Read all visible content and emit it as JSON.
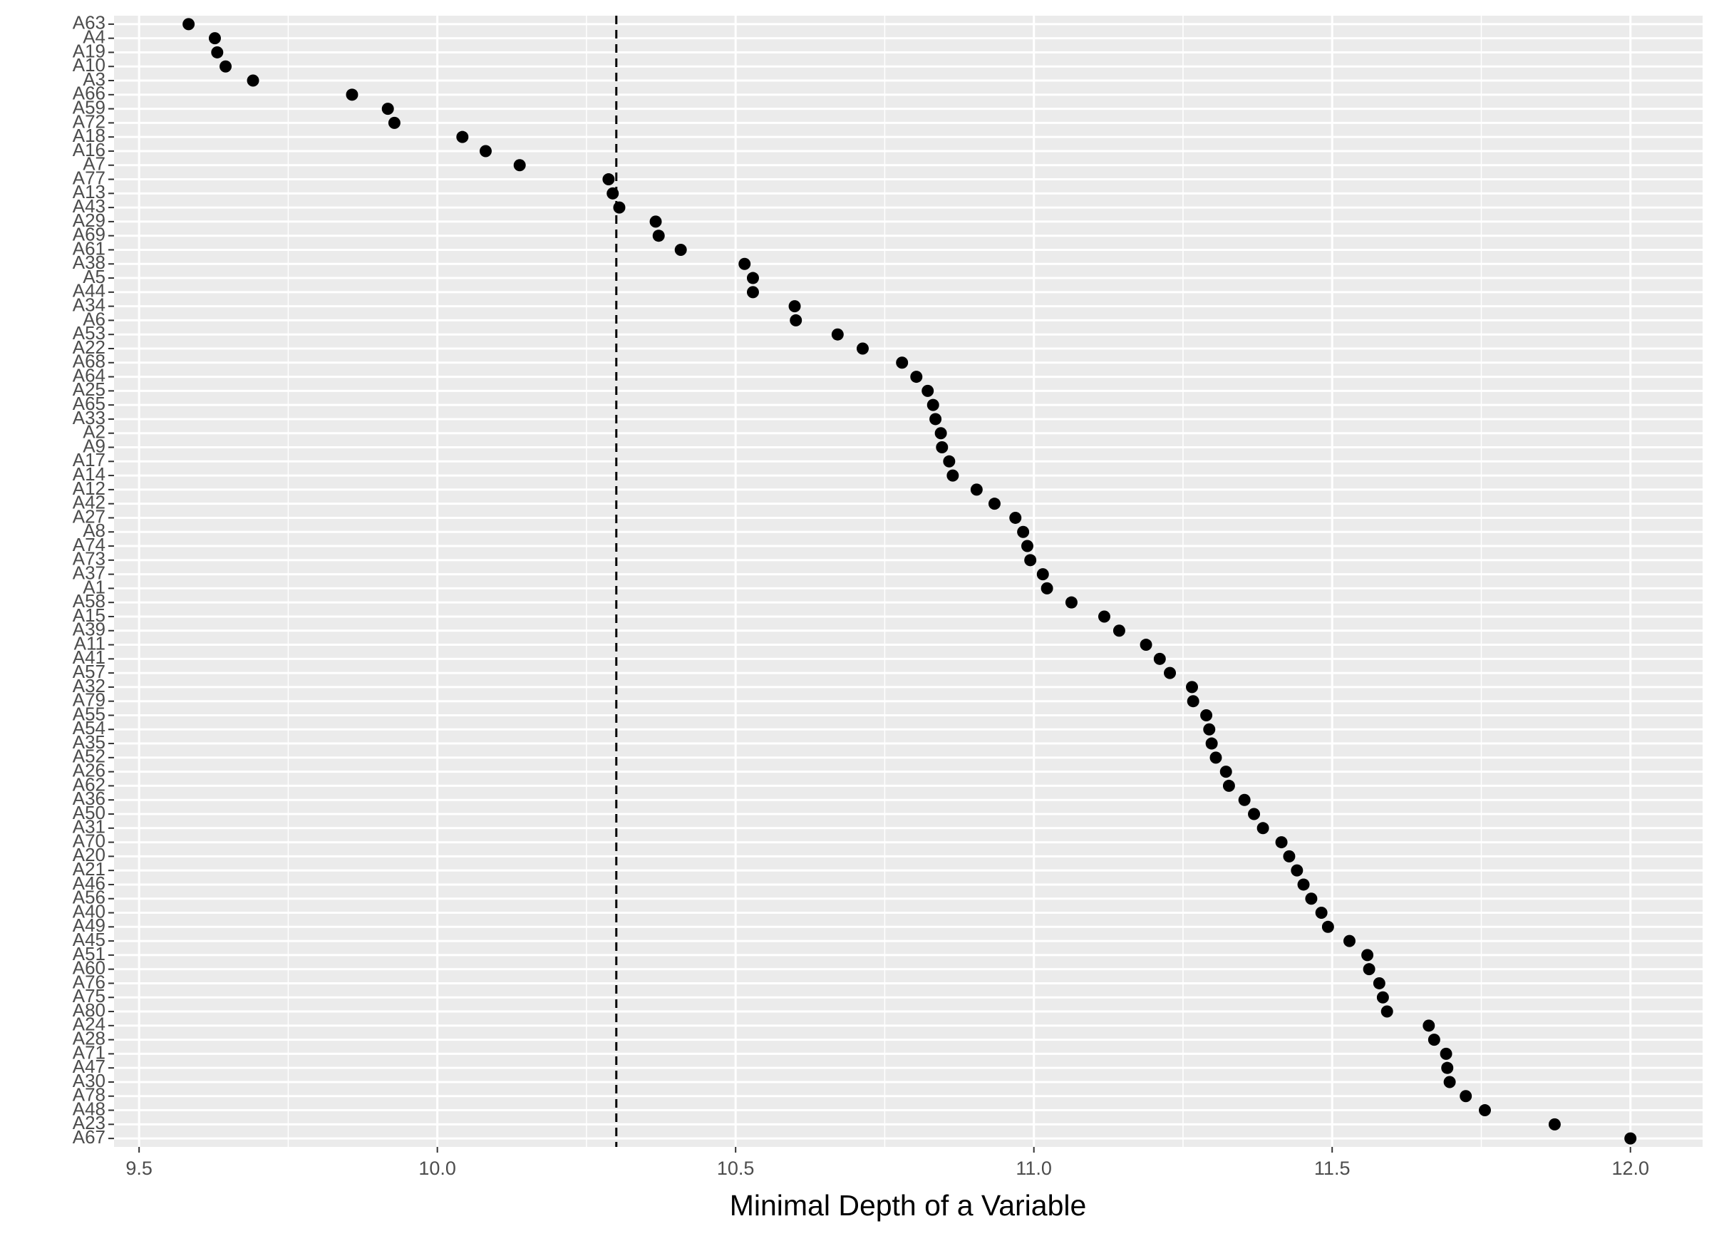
{
  "chart_data": {
    "type": "dot",
    "x_label": "Minimal Depth of a Variable",
    "categories": [
      "A63",
      "A4",
      "A19",
      "A10",
      "A3",
      "A66",
      "A59",
      "A72",
      "A18",
      "A16",
      "A7",
      "A77",
      "A13",
      "A43",
      "A29",
      "A69",
      "A61",
      "A38",
      "A5",
      "A44",
      "A34",
      "A6",
      "A53",
      "A22",
      "A68",
      "A64",
      "A25",
      "A65",
      "A33",
      "A2",
      "A9",
      "A17",
      "A14",
      "A12",
      "A42",
      "A27",
      "A8",
      "A74",
      "A73",
      "A37",
      "A1",
      "A58",
      "A15",
      "A39",
      "A11",
      "A41",
      "A57",
      "A32",
      "A79",
      "A55",
      "A54",
      "A35",
      "A52",
      "A26",
      "A62",
      "A36",
      "A50",
      "A31",
      "A70",
      "A20",
      "A21",
      "A46",
      "A56",
      "A40",
      "A49",
      "A45",
      "A51",
      "A60",
      "A76",
      "A75",
      "A80",
      "A24",
      "A28",
      "A71",
      "A47",
      "A30",
      "A78",
      "A48",
      "A23",
      "A67"
    ],
    "values": [
      9.583,
      9.627,
      9.631,
      9.645,
      9.691,
      9.857,
      9.917,
      9.928,
      10.042,
      10.081,
      10.138,
      10.287,
      10.294,
      10.305,
      10.366,
      10.371,
      10.408,
      10.515,
      10.529,
      10.529,
      10.599,
      10.601,
      10.671,
      10.713,
      10.779,
      10.803,
      10.822,
      10.831,
      10.835,
      10.844,
      10.846,
      10.858,
      10.864,
      10.904,
      10.934,
      10.969,
      10.982,
      10.989,
      10.994,
      11.015,
      11.022,
      11.063,
      11.118,
      11.143,
      11.188,
      11.211,
      11.228,
      11.265,
      11.267,
      11.289,
      11.294,
      11.298,
      11.305,
      11.322,
      11.327,
      11.353,
      11.369,
      11.384,
      11.415,
      11.428,
      11.441,
      11.452,
      11.465,
      11.482,
      11.493,
      11.529,
      11.559,
      11.562,
      11.579,
      11.585,
      11.592,
      11.662,
      11.671,
      11.691,
      11.693,
      11.697,
      11.724,
      11.756,
      11.873,
      12.0
    ],
    "color": "#000000",
    "reference_line": 10.3,
    "xlim": [
      9.458,
      12.121
    ],
    "xticks": [
      9.5,
      {
        "value": 10,
        "label": "10.0"
      },
      10.5,
      {
        "value": 11,
        "label": "11.0"
      },
      11.5,
      {
        "value": 12,
        "label": "12.0"
      }
    ],
    "x_minor_ticks": [
      9.75,
      10.25,
      10.75,
      11.25,
      11.75
    ],
    "grid": true
  }
}
